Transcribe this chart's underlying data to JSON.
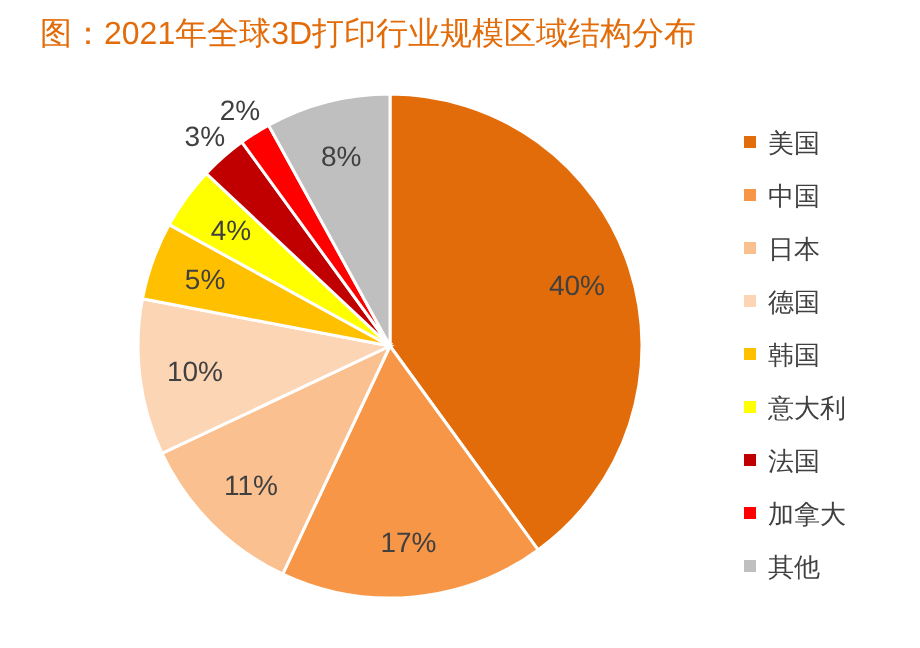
{
  "chart_data": {
    "type": "pie",
    "title": "图：2021年全球3D打印行业规模区域结构分布",
    "categories": [
      "美国",
      "中国",
      "日本",
      "德国",
      "韩国",
      "意大利",
      "法国",
      "加拿大",
      "其他"
    ],
    "values": [
      40,
      17,
      11,
      10,
      5,
      4,
      3,
      2,
      8
    ],
    "colors": [
      "#e36c0a",
      "#f79646",
      "#fac090",
      "#fcd5b4",
      "#ffc000",
      "#ffff00",
      "#c00000",
      "#ff0000",
      "#bfbfbf"
    ],
    "value_labels": [
      "40%",
      "17%",
      "11%",
      "10%",
      "5%",
      "4%",
      "3%",
      "2%",
      "8%"
    ],
    "legend": "right"
  }
}
